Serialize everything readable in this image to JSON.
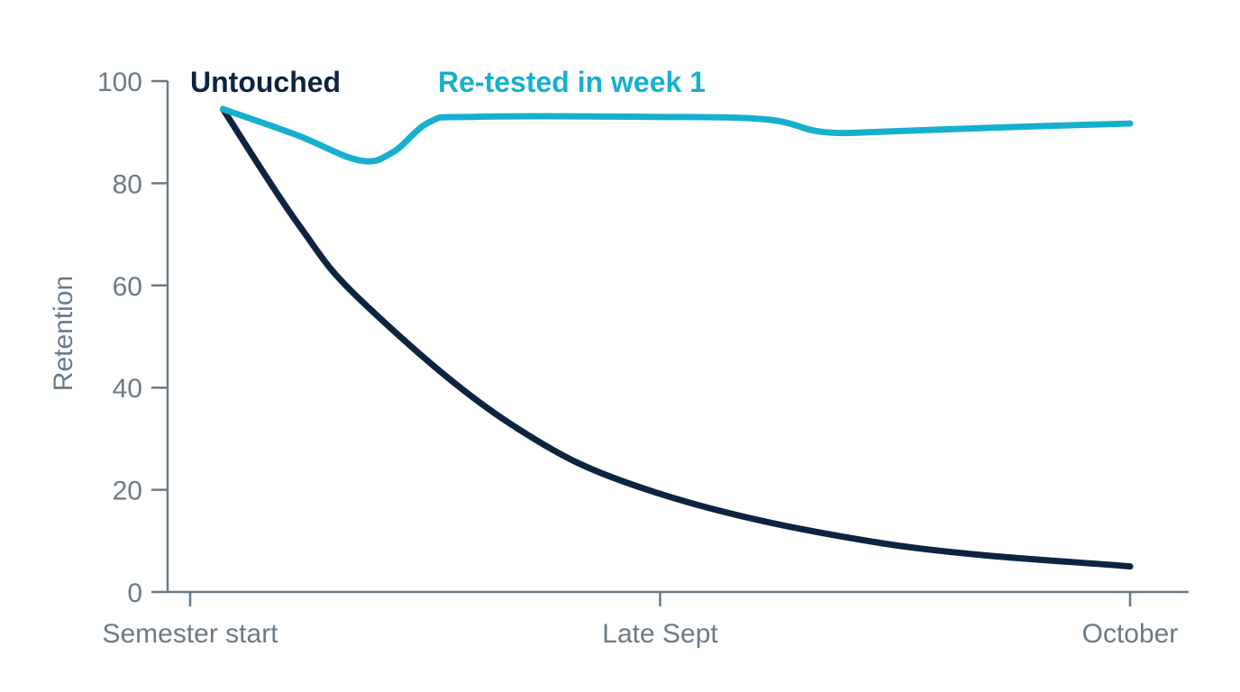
{
  "chart_data": {
    "type": "line",
    "title": "",
    "xlabel": "",
    "ylabel": "Retention",
    "ylim": [
      0,
      100
    ],
    "yticks": [
      0,
      20,
      40,
      60,
      80,
      100
    ],
    "xlim": [
      0,
      4
    ],
    "xticks": [
      {
        "x": 0,
        "label": "Semester start"
      },
      {
        "x": 2,
        "label": "Late Sept"
      },
      {
        "x": 4,
        "label": "October"
      }
    ],
    "grid": false,
    "legend": "direct labels at top",
    "series": [
      {
        "name": "Untouched",
        "color": "#0d2440",
        "points": [
          [
            0.14,
            94.5
          ],
          [
            0.46,
            72
          ],
          [
            0.74,
            56.5
          ],
          [
            1.36,
            33
          ],
          [
            1.98,
            19.5
          ],
          [
            2.95,
            9.5
          ],
          [
            4.0,
            5
          ]
        ]
      },
      {
        "name": "Re-tested in week 1",
        "color": "#16b0ce",
        "points": [
          [
            0.14,
            94.5
          ],
          [
            0.45,
            89.5
          ],
          [
            0.72,
            84.5
          ],
          [
            0.86,
            86
          ],
          [
            1.02,
            92
          ],
          [
            1.2,
            93
          ],
          [
            1.98,
            93
          ],
          [
            2.45,
            92.5
          ],
          [
            2.7,
            90
          ],
          [
            3.0,
            90.2
          ],
          [
            3.5,
            91
          ],
          [
            4.0,
            91.7
          ]
        ]
      }
    ]
  }
}
